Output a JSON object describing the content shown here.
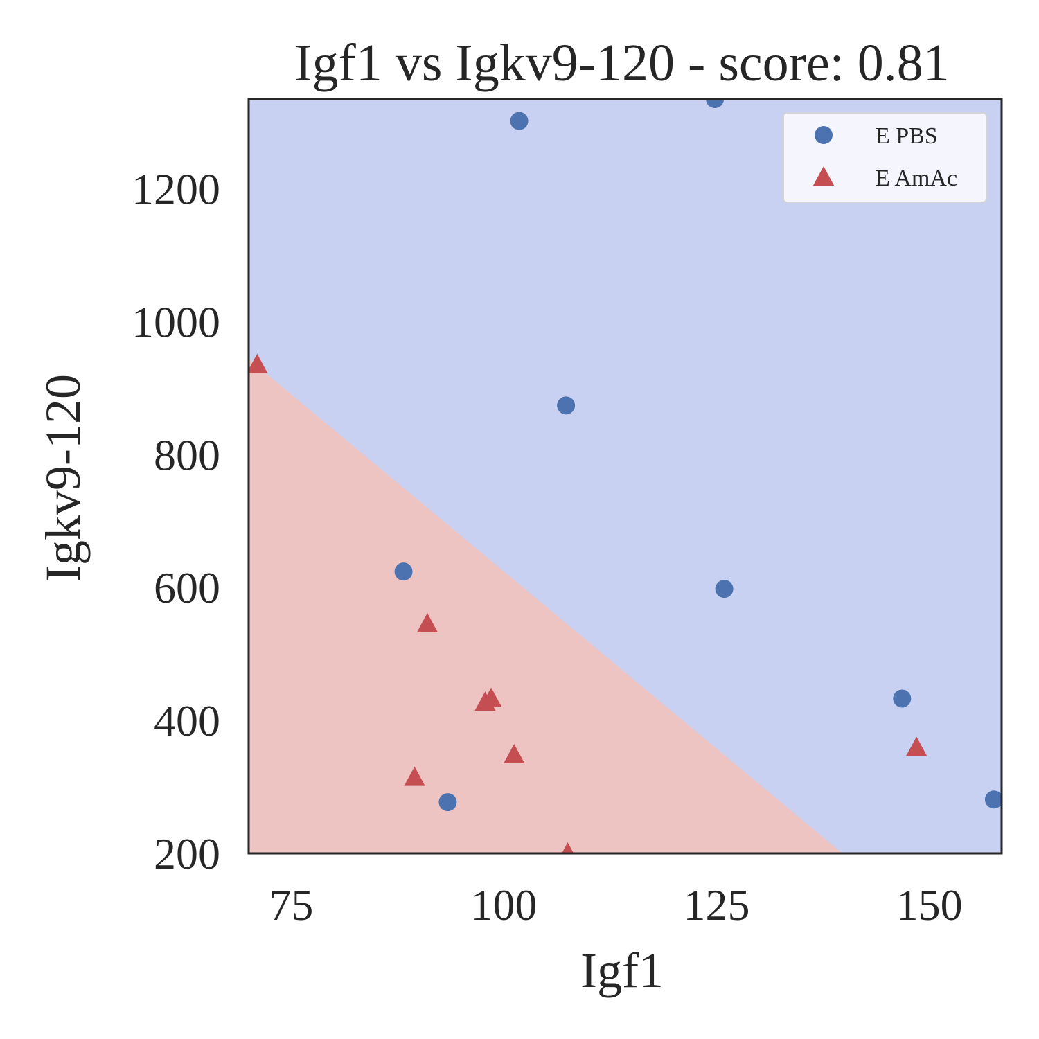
{
  "chart_data": {
    "type": "scatter",
    "title": "Igf1 vs Igkv9-120 - score: 0.81",
    "xlabel": "Igf1",
    "ylabel": "Igkv9-120",
    "xlim": [
      70,
      158.5
    ],
    "ylim": [
      200,
      1335
    ],
    "xticks": [
      75,
      100,
      125,
      150
    ],
    "yticks": [
      200,
      400,
      600,
      800,
      1000,
      1200
    ],
    "grid": false,
    "legend_position": "top-right",
    "decision_regions": {
      "upper_region_color": "#c8d1f1",
      "lower_region_color": "#eec4c3",
      "boundary": [
        {
          "x": 70,
          "y": 944
        },
        {
          "x": 139.8,
          "y": 200
        }
      ]
    },
    "series": [
      {
        "name": "E PBS",
        "marker": "circle",
        "color": "#4c72b0",
        "points": [
          {
            "x": 101.8,
            "y": 1302
          },
          {
            "x": 124.8,
            "y": 1335
          },
          {
            "x": 107.3,
            "y": 874
          },
          {
            "x": 88.2,
            "y": 624
          },
          {
            "x": 125.9,
            "y": 598
          },
          {
            "x": 146.8,
            "y": 433
          },
          {
            "x": 93.4,
            "y": 277
          },
          {
            "x": 157.6,
            "y": 281
          }
        ]
      },
      {
        "name": "E AmAc",
        "marker": "triangle",
        "color": "#c44e52",
        "points": [
          {
            "x": 71.0,
            "y": 935
          },
          {
            "x": 91.0,
            "y": 545
          },
          {
            "x": 97.8,
            "y": 427
          },
          {
            "x": 98.5,
            "y": 433
          },
          {
            "x": 101.2,
            "y": 348
          },
          {
            "x": 89.5,
            "y": 314
          },
          {
            "x": 148.5,
            "y": 359
          },
          {
            "x": 107.5,
            "y": 200
          }
        ]
      }
    ]
  }
}
